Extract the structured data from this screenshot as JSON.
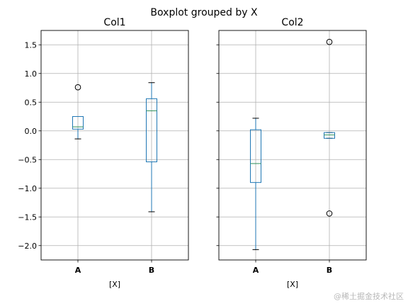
{
  "chart_data": {
    "type": "boxplot",
    "title": "Boxplot grouped by X",
    "xlabel": "[X]",
    "ylim": [
      -2.25,
      1.75
    ],
    "yticks": [
      1.5,
      1.0,
      0.5,
      0.0,
      -0.5,
      -1.0,
      -1.5,
      -2.0
    ],
    "ytick_labels": [
      "1.5",
      "1.0",
      "0.5",
      "0.0",
      "−0.5",
      "−1.0",
      "−1.5",
      "−2.0"
    ],
    "categories": [
      "A",
      "B"
    ],
    "grid": true,
    "sharey": true,
    "box_color": "#1f77b4",
    "median_color": "#2c8f5a",
    "grid_color": "#b0b0b0",
    "panels": [
      {
        "title": "Col1",
        "boxes": [
          {
            "category": "A",
            "whisker_low": -0.14,
            "q1": 0.03,
            "median": 0.07,
            "q3": 0.25,
            "whisker_high": 0.25,
            "outliers": [
              0.76
            ]
          },
          {
            "category": "B",
            "whisker_low": -1.41,
            "q1": -0.54,
            "median": 0.35,
            "q3": 0.56,
            "whisker_high": 0.84,
            "outliers": []
          }
        ]
      },
      {
        "title": "Col2",
        "boxes": [
          {
            "category": "A",
            "whisker_low": -2.07,
            "q1": -0.9,
            "median": -0.57,
            "q3": 0.02,
            "whisker_high": 0.22,
            "outliers": []
          },
          {
            "category": "B",
            "whisker_low": -0.13,
            "q1": -0.13,
            "median": -0.07,
            "q3": -0.03,
            "whisker_high": -0.03,
            "outliers": [
              1.55,
              -1.44
            ]
          }
        ]
      }
    ]
  },
  "watermark": "@稀土掘金技术社区"
}
